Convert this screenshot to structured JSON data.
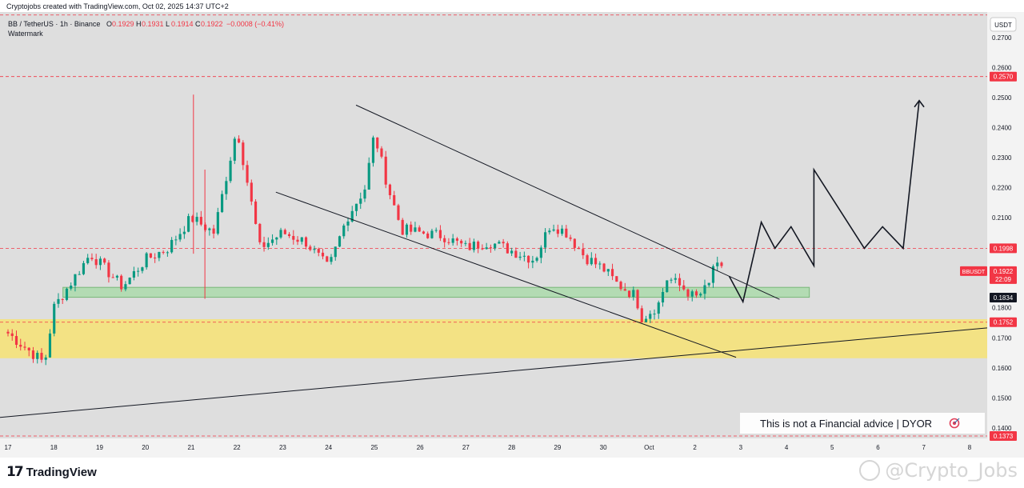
{
  "header": {
    "caption": "Cryptojobs created with TradingView.com, Oct 02, 2025 14:37 UTC+2",
    "symbol_line": "BB / TetherUS · 1h · Binance",
    "ohlc": [
      {
        "label": "O",
        "value": "0.1929"
      },
      {
        "label": "H",
        "value": "0.1931"
      },
      {
        "label": "L",
        "value": "0.1914"
      },
      {
        "label": "C",
        "value": "0.1922"
      }
    ],
    "change": "−0.0008 (−0.41%)",
    "watermark_label": "Watermark"
  },
  "footer": {
    "brand": "TradingView",
    "signature": "@Crypto_Jobs"
  },
  "chart_data": {
    "type": "candlestick",
    "currency": "USDT",
    "ylim": [
      0.1365,
      0.2785
    ],
    "y_ticks": [
      "0.2700",
      "0.2600",
      "0.2500",
      "0.2400",
      "0.2300",
      "0.2200",
      "0.2100",
      "0.1800",
      "0.1700",
      "0.1600",
      "0.1500",
      "0.1400"
    ],
    "x_labels": [
      "17",
      "18",
      "19",
      "20",
      "21",
      "22",
      "23",
      "24",
      "25",
      "26",
      "27",
      "28",
      "29",
      "30",
      "Oct",
      "2",
      "3",
      "4",
      "5",
      "6",
      "7",
      "8"
    ],
    "x_range": [
      0,
      21
    ],
    "price_tags": [
      {
        "value": 0.257,
        "label": "0.2570",
        "color": "#f23645"
      },
      {
        "value": 0.1998,
        "label": "0.1998",
        "color": "#f23645"
      },
      {
        "value": 0.1834,
        "label": "0.1834",
        "color": "#131722"
      },
      {
        "value": 0.1752,
        "label": "0.1752",
        "color": "#f23645"
      },
      {
        "value": 0.1373,
        "label": "0.1373",
        "color": "#f23645"
      }
    ],
    "current_price": {
      "symbol": "BBUSDT",
      "value": 0.1922,
      "label": "0.1922",
      "countdown": "22:09",
      "color": "#f23645"
    },
    "dashed_levels": [
      0.2775,
      0.257,
      0.1998,
      0.1752,
      0.1373
    ],
    "zones": [
      {
        "name": "demand zone",
        "x_start": -0.2,
        "x_end": 21.5,
        "y_low": 0.1632,
        "y_high": 0.1762,
        "color": "#f5e27a"
      },
      {
        "name": "support zone",
        "x_start": 1.2,
        "x_end": 17.5,
        "y_low": 0.1835,
        "y_high": 0.1868,
        "color": "#a9dba9"
      }
    ],
    "trendlines": [
      {
        "name": "upper wedge line",
        "x1": 7.6,
        "y1": 0.2475,
        "x2": 16.85,
        "y2": 0.1828
      },
      {
        "name": "lower wedge line",
        "x1": 5.85,
        "y1": 0.2185,
        "x2": 15.9,
        "y2": 0.1635
      },
      {
        "name": "long-term support",
        "x1": -0.2,
        "y1": 0.1435,
        "x2": 21.6,
        "y2": 0.1733
      }
    ],
    "projection": [
      [
        15.75,
        0.1905
      ],
      [
        16.05,
        0.182
      ],
      [
        16.45,
        0.2085
      ],
      [
        16.75,
        0.1998
      ],
      [
        17.1,
        0.207
      ],
      [
        17.6,
        0.194
      ],
      [
        17.6,
        0.226
      ],
      [
        18.7,
        0.1998
      ],
      [
        19.1,
        0.207
      ],
      [
        19.55,
        0.1998
      ],
      [
        19.9,
        0.249
      ]
    ],
    "key_price_points": [
      {
        "x": 0.8,
        "y": 0.1615
      },
      {
        "x": 1.0,
        "y": 0.18
      },
      {
        "x": 1.8,
        "y": 0.198
      },
      {
        "x": 2.5,
        "y": 0.187
      },
      {
        "x": 3.0,
        "y": 0.196
      },
      {
        "x": 3.5,
        "y": 0.2
      },
      {
        "x": 4.0,
        "y": 0.21
      },
      {
        "x": 4.5,
        "y": 0.205
      },
      {
        "x": 5.0,
        "y": 0.24
      },
      {
        "x": 5.5,
        "y": 0.2
      },
      {
        "x": 6.0,
        "y": 0.205
      },
      {
        "x": 6.5,
        "y": 0.202
      },
      {
        "x": 7.0,
        "y": 0.193
      },
      {
        "x": 7.4,
        "y": 0.21
      },
      {
        "x": 7.8,
        "y": 0.22
      },
      {
        "x": 8.0,
        "y": 0.238
      },
      {
        "x": 8.3,
        "y": 0.22
      },
      {
        "x": 8.6,
        "y": 0.206
      },
      {
        "x": 9.0,
        "y": 0.205
      },
      {
        "x": 9.5,
        "y": 0.204
      },
      {
        "x": 10.0,
        "y": 0.2
      },
      {
        "x": 10.5,
        "y": 0.202
      },
      {
        "x": 11.0,
        "y": 0.199
      },
      {
        "x": 11.5,
        "y": 0.196
      },
      {
        "x": 11.85,
        "y": 0.208
      },
      {
        "x": 12.2,
        "y": 0.205
      },
      {
        "x": 12.6,
        "y": 0.197
      },
      {
        "x": 13.0,
        "y": 0.193
      },
      {
        "x": 13.3,
        "y": 0.188
      },
      {
        "x": 13.7,
        "y": 0.184
      },
      {
        "x": 13.85,
        "y": 0.1765
      },
      {
        "x": 14.2,
        "y": 0.181
      },
      {
        "x": 14.4,
        "y": 0.19
      },
      {
        "x": 14.8,
        "y": 0.186
      },
      {
        "x": 15.0,
        "y": 0.183
      },
      {
        "x": 15.3,
        "y": 0.187
      },
      {
        "x": 15.4,
        "y": 0.194
      },
      {
        "x": 15.6,
        "y": 0.1922
      }
    ],
    "spikes": [
      {
        "x": 4.05,
        "high": 0.251,
        "low": 0.198
      },
      {
        "x": 4.3,
        "high": 0.226,
        "low": 0.183
      }
    ],
    "disclaimer": "This is not a Financial advice | DYOR",
    "disclaimer_icon": "target-icon",
    "colors": {
      "up": "#089981",
      "down": "#f23645",
      "pane": "#dedede",
      "axis": "#f3f3f3"
    }
  }
}
